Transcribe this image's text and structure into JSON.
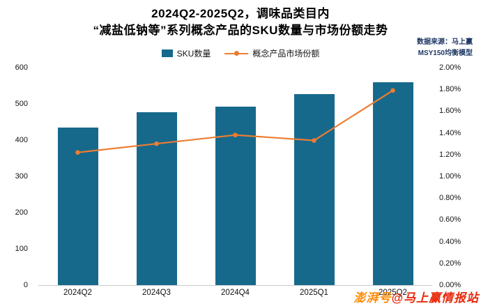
{
  "header": {
    "title_line1": "2024Q2-2025Q2，调味品类目内",
    "title_line2": "“减盐低钠等”系列概念产品的SKU数量与市场份额走势",
    "source_line1": "数据来源：马上赢",
    "source_line2": "MSY150均衡模型"
  },
  "legend": {
    "bar_label": "SKU数量",
    "line_label": "概念产品市场份额"
  },
  "watermark": {
    "part1": "澎湃号",
    "part2": "@马上赢情报站"
  },
  "colors": {
    "bar": "#17698C",
    "line": "#ED7D31",
    "source_text": "#1F3864",
    "watermark_orange": "#FF8A00",
    "watermark_red": "#E8290B"
  },
  "chart_data": {
    "type": "bar",
    "title": "2024Q2-2025Q2，调味品类目内“减盐低钠等”系列概念产品的SKU数量与市场份额走势",
    "categories": [
      "2024Q2",
      "2024Q3",
      "2024Q4",
      "2025Q1",
      "2025Q2"
    ],
    "series": [
      {
        "name": "SKU数量",
        "chart": "bar",
        "axis": "left",
        "color": "#17698C",
        "values": [
          435,
          477,
          492,
          527,
          560
        ]
      },
      {
        "name": "概念产品市场份额",
        "chart": "line",
        "axis": "right",
        "color": "#ED7D31",
        "unit": "%",
        "values": [
          1.22,
          1.3,
          1.38,
          1.33,
          1.79
        ]
      }
    ],
    "left_axis": {
      "min": 0,
      "max": 600,
      "step": 100,
      "ticks": [
        "600",
        "500",
        "400",
        "300",
        "200",
        "100",
        "0"
      ]
    },
    "right_axis": {
      "min": 0,
      "max": 2.0,
      "step": 0.2,
      "ticks": [
        "2.00%",
        "1.80%",
        "1.60%",
        "1.40%",
        "1.20%",
        "1.00%",
        "0.80%",
        "0.60%",
        "0.40%",
        "0.20%",
        "0.00%"
      ]
    },
    "grid": false,
    "legend_position": "top"
  }
}
